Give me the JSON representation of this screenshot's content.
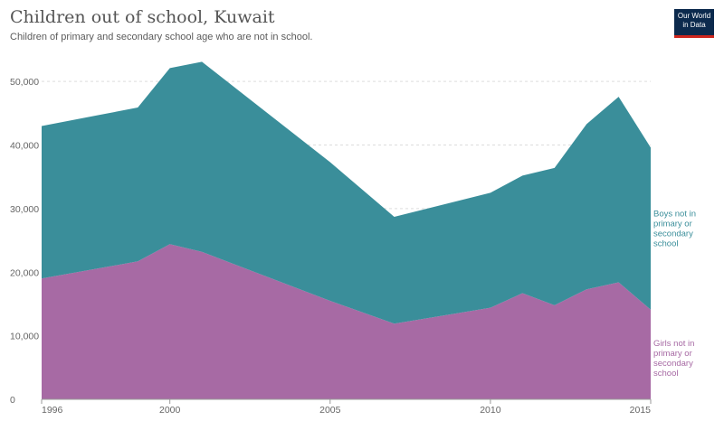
{
  "header": {
    "title": "Children out of school, Kuwait",
    "subtitle": "Children of primary and secondary school age who are not in school."
  },
  "logo": {
    "line1": "Our World",
    "line2": "in Data",
    "bg_color": "#0c2a4d",
    "accent_color": "#ce261e"
  },
  "chart_data": {
    "type": "area",
    "stacked": true,
    "x": [
      1996,
      1999,
      2000,
      2001,
      2005,
      2007,
      2010,
      2011,
      2012,
      2013,
      2014,
      2015
    ],
    "series": [
      {
        "name": "Girls not in primary or secondary school",
        "name_lines": [
          "Girls not in",
          "primary or",
          "secondary",
          "school"
        ],
        "color": "#a76aa4",
        "values": [
          19000,
          21700,
          24400,
          23200,
          15500,
          11900,
          14400,
          16700,
          14800,
          17300,
          18400,
          14100
        ]
      },
      {
        "name": "Boys not in primary or secondary school",
        "name_lines": [
          "Boys not in",
          "primary or",
          "secondary",
          "school"
        ],
        "color": "#3a8e9a",
        "values": [
          24000,
          24200,
          27700,
          29900,
          21800,
          16800,
          18100,
          18500,
          21600,
          26000,
          29200,
          25500
        ]
      }
    ],
    "xlim": [
      1996,
      2015
    ],
    "ylim": [
      0,
      55000
    ],
    "y_ticks": [
      0,
      10000,
      20000,
      30000,
      40000,
      50000
    ],
    "y_tick_labels": [
      "0",
      "10,000",
      "20,000",
      "30,000",
      "40,000",
      "50,000"
    ],
    "x_ticks": [
      1996,
      2000,
      2005,
      2010,
      2015
    ],
    "x_tick_labels": [
      "1996",
      "2000",
      "2005",
      "2010",
      "2015"
    ],
    "grid": true,
    "legend": "right"
  }
}
